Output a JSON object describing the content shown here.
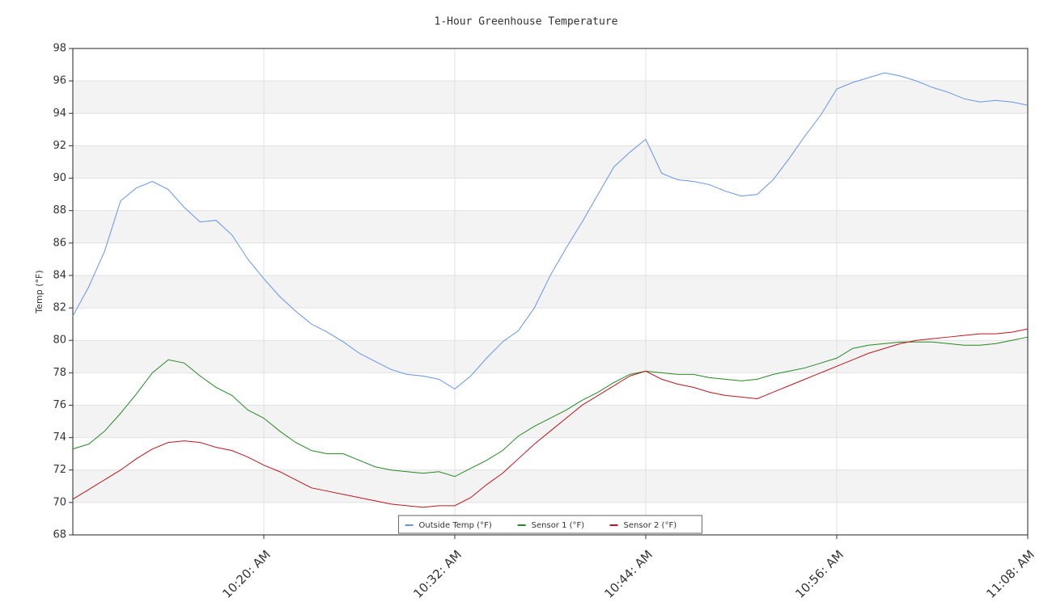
{
  "chart_data": {
    "type": "line",
    "title": "1-Hour Greenhouse Temperature",
    "y_label": "Temp (°F)",
    "x": [
      8,
      9,
      10,
      11,
      12,
      13,
      14,
      15,
      16,
      17,
      18,
      19,
      20,
      21,
      22,
      23,
      24,
      25,
      26,
      27,
      28,
      29,
      30,
      31,
      32,
      33,
      34,
      35,
      36,
      37,
      38,
      39,
      40,
      41,
      42,
      43,
      44,
      45,
      46,
      47,
      48,
      49,
      50,
      51,
      52,
      53,
      54,
      55,
      56,
      57,
      58,
      59,
      60,
      61,
      62,
      63,
      64,
      65,
      66,
      67,
      68
    ],
    "xlim": [
      8,
      68
    ],
    "xticks": [
      {
        "value": 20,
        "label": "10:20: AM"
      },
      {
        "value": 32,
        "label": "10:32: AM"
      },
      {
        "value": 44,
        "label": "10:44: AM"
      },
      {
        "value": 56,
        "label": "10:56: AM"
      },
      {
        "value": 68,
        "label": "11:08: AM"
      }
    ],
    "ylim": [
      68,
      98
    ],
    "yticks": [
      68,
      70,
      72,
      74,
      76,
      78,
      80,
      82,
      84,
      86,
      88,
      90,
      92,
      94,
      96,
      98
    ],
    "grid": true,
    "legend": "bottom",
    "series": [
      {
        "name": "Outside Temp (°F)",
        "color": "#6495ed",
        "values": [
          81.5,
          83.3,
          85.5,
          88.6,
          89.4,
          89.8,
          89.3,
          88.2,
          87.3,
          87.4,
          86.5,
          85.0,
          83.8,
          82.7,
          81.8,
          81.0,
          80.5,
          79.9,
          79.2,
          78.7,
          78.2,
          77.9,
          77.8,
          77.6,
          77.0,
          77.8,
          78.9,
          79.9,
          80.6,
          82.0,
          84.0,
          85.7,
          87.3,
          89.0,
          90.7,
          91.6,
          92.4,
          90.3,
          89.9,
          89.8,
          89.6,
          89.2,
          88.9,
          89.0,
          89.9,
          91.2,
          92.6,
          93.9,
          95.5,
          95.9,
          96.2,
          96.5,
          96.3,
          96.0,
          95.6,
          95.3,
          94.9,
          94.7,
          94.8,
          94.7,
          94.5
        ]
      },
      {
        "name": "Sensor 1 (°F)",
        "color": "#228b22",
        "values": [
          73.3,
          73.6,
          74.4,
          75.5,
          76.7,
          78.0,
          78.8,
          78.6,
          77.8,
          77.1,
          76.6,
          75.7,
          75.2,
          74.4,
          73.7,
          73.2,
          73.0,
          73.0,
          72.6,
          72.2,
          72.0,
          71.9,
          71.8,
          71.9,
          71.6,
          72.1,
          72.6,
          73.2,
          74.1,
          74.7,
          75.2,
          75.7,
          76.3,
          76.8,
          77.4,
          77.9,
          78.1,
          78.0,
          77.9,
          77.9,
          77.7,
          77.6,
          77.5,
          77.6,
          77.9,
          78.1,
          78.3,
          78.6,
          78.9,
          79.5,
          79.7,
          79.8,
          79.9,
          79.9,
          79.9,
          79.8,
          79.7,
          79.7,
          79.8,
          80.0,
          80.2
        ]
      },
      {
        "name": "Sensor 2 (°F)",
        "color": "#c0141c",
        "values": [
          70.2,
          70.8,
          71.4,
          72.0,
          72.7,
          73.3,
          73.7,
          73.8,
          73.7,
          73.4,
          73.2,
          72.8,
          72.3,
          71.9,
          71.4,
          70.9,
          70.7,
          70.5,
          70.3,
          70.1,
          69.9,
          69.8,
          69.7,
          69.8,
          69.8,
          70.3,
          71.1,
          71.8,
          72.7,
          73.6,
          74.4,
          75.2,
          76.0,
          76.6,
          77.2,
          77.8,
          78.1,
          77.6,
          77.3,
          77.1,
          76.8,
          76.6,
          76.5,
          76.4,
          76.8,
          77.2,
          77.6,
          78.0,
          78.4,
          78.8,
          79.2,
          79.5,
          79.8,
          80.0,
          80.1,
          80.2,
          80.3,
          80.4,
          80.4,
          80.5,
          80.7
        ]
      }
    ]
  }
}
